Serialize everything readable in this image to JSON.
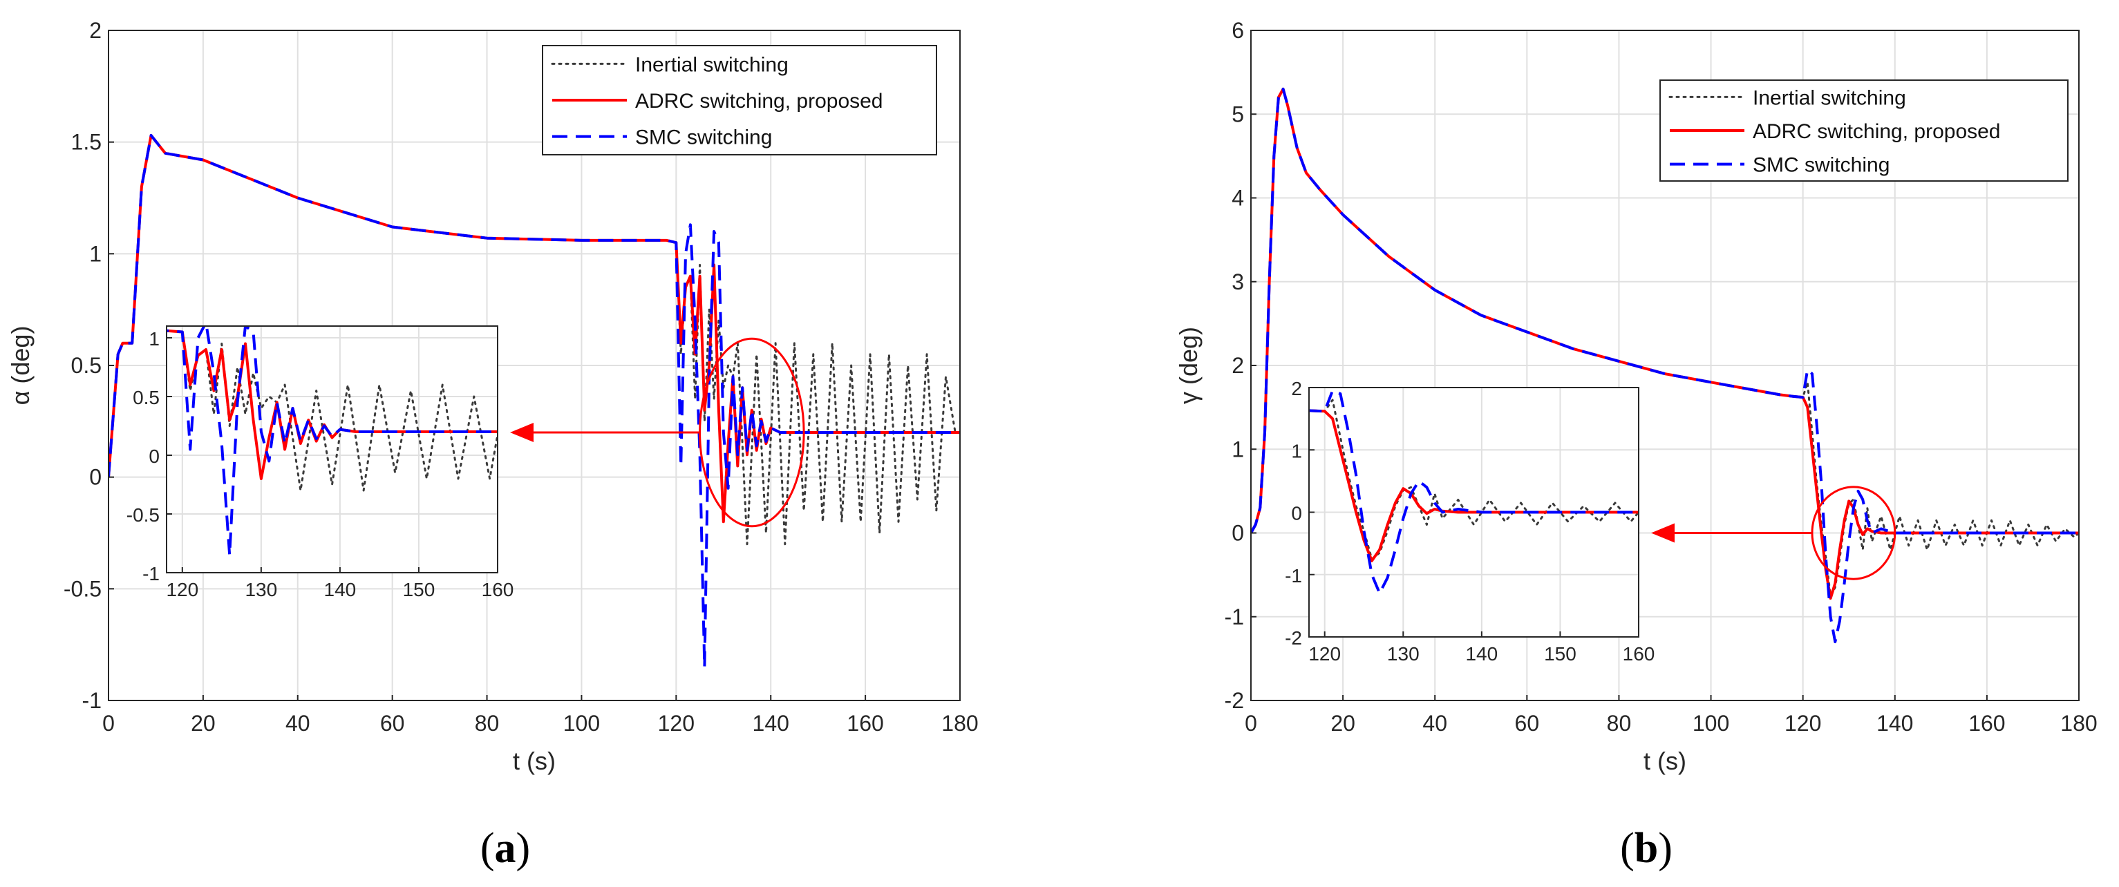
{
  "colors": {
    "inertial": "#3a3a3a",
    "adrc": "#ff0000",
    "smc": "#0000ff",
    "grid": "#e0e0e0",
    "axis": "#262626"
  },
  "chart_data": [
    {
      "id": "a",
      "type": "line",
      "caption": {
        "label": "a",
        "open": "(",
        "close": ")"
      },
      "xlabel": "t (s)",
      "ylabel": "α (deg)",
      "xlim": [
        0,
        180
      ],
      "ylim": [
        -1,
        2
      ],
      "xticks": [
        0,
        20,
        40,
        60,
        80,
        100,
        120,
        140,
        160,
        180
      ],
      "yticks": [
        -1,
        -0.5,
        0,
        0.5,
        1,
        1.5,
        2
      ],
      "ytick_labels": [
        "-1",
        "-0.5",
        "0",
        "0.5",
        "1",
        "1.5",
        "2"
      ],
      "grid": true,
      "legend": {
        "position": "top-right",
        "entries": [
          "Inertial switching",
          "ADRC switching, proposed",
          "SMC switching"
        ]
      },
      "series": [
        {
          "name": "Inertial switching",
          "style": "dotted",
          "x": [
            0,
            2,
            3,
            5,
            7,
            9,
            12,
            20,
            40,
            60,
            80,
            100,
            110,
            118,
            120,
            121,
            122,
            123,
            124,
            125,
            126,
            127,
            128,
            129,
            130,
            131,
            132,
            133,
            135,
            137,
            139,
            141,
            143,
            145,
            147,
            149,
            151,
            153,
            155,
            157,
            159,
            161,
            163,
            165,
            167,
            169,
            171,
            173,
            175,
            177,
            179,
            180
          ],
          "y": [
            0,
            0.55,
            0.6,
            0.6,
            1.3,
            1.53,
            1.45,
            1.42,
            1.25,
            1.12,
            1.07,
            1.06,
            1.06,
            1.06,
            1.05,
            0.55,
            0.85,
            0.9,
            0.35,
            0.95,
            0.25,
            0.75,
            0.35,
            0.7,
            0.4,
            0.5,
            0.45,
            0.6,
            -0.3,
            0.55,
            -0.25,
            0.6,
            -0.3,
            0.6,
            -0.15,
            0.55,
            -0.2,
            0.6,
            -0.2,
            0.5,
            -0.2,
            0.55,
            -0.25,
            0.55,
            -0.2,
            0.5,
            -0.1,
            0.55,
            -0.15,
            0.45,
            0.2,
            0.2
          ]
        },
        {
          "name": "ADRC switching, proposed",
          "style": "solid",
          "x": [
            0,
            2,
            3,
            5,
            7,
            9,
            12,
            20,
            40,
            60,
            80,
            100,
            110,
            118,
            120,
            121,
            122,
            123,
            124,
            125,
            126,
            127,
            128,
            129,
            130,
            131,
            132,
            133,
            134,
            135,
            136,
            137,
            138,
            139,
            140,
            142,
            145,
            150,
            160,
            170,
            180
          ],
          "y": [
            0,
            0.55,
            0.6,
            0.6,
            1.3,
            1.53,
            1.45,
            1.42,
            1.25,
            1.12,
            1.07,
            1.06,
            1.06,
            1.06,
            1.05,
            0.6,
            0.85,
            0.9,
            0.55,
            0.9,
            0.3,
            0.5,
            0.95,
            0.3,
            -0.2,
            0.15,
            0.45,
            0.05,
            0.4,
            0.1,
            0.3,
            0.12,
            0.26,
            0.15,
            0.22,
            0.2,
            0.2,
            0.2,
            0.2,
            0.2,
            0.2
          ]
        },
        {
          "name": "SMC switching",
          "style": "dashed",
          "x": [
            0,
            2,
            3,
            5,
            7,
            9,
            12,
            20,
            40,
            60,
            80,
            100,
            110,
            118,
            120,
            121,
            122,
            123,
            124,
            125,
            126,
            127,
            128,
            129,
            130,
            131,
            132,
            133,
            134,
            135,
            136,
            137,
            138,
            139,
            140,
            142,
            145,
            150,
            160,
            170,
            180
          ],
          "y": [
            0,
            0.55,
            0.6,
            0.6,
            1.3,
            1.53,
            1.45,
            1.42,
            1.25,
            1.12,
            1.07,
            1.06,
            1.06,
            1.06,
            1.05,
            0.05,
            1.0,
            1.13,
            0.7,
            0.1,
            -0.85,
            0.45,
            1.1,
            1.05,
            0.2,
            -0.05,
            0.45,
            0.1,
            0.4,
            0.12,
            0.3,
            0.14,
            0.25,
            0.16,
            0.22,
            0.2,
            0.2,
            0.2,
            0.2,
            0.2,
            0.2
          ]
        }
      ],
      "inset": {
        "xlim": [
          118,
          160
        ],
        "ylim": [
          -1,
          1.1
        ],
        "xticks": [
          120,
          130,
          140,
          150,
          160
        ],
        "yticks": [
          -1,
          -0.5,
          0,
          0.5,
          1
        ],
        "ytick_labels": [
          "-1",
          "-0.5",
          "0",
          "0.5",
          "1"
        ],
        "zoom_center": [
          136,
          0.2
        ],
        "zoom_radius": [
          11,
          0.42
        ]
      }
    },
    {
      "id": "b",
      "type": "line",
      "caption": {
        "label": "b",
        "open": "(",
        "close": ")"
      },
      "xlabel": "t (s)",
      "ylabel": "γ (deg)",
      "xlim": [
        0,
        180
      ],
      "ylim": [
        -2,
        6
      ],
      "xticks": [
        0,
        20,
        40,
        60,
        80,
        100,
        120,
        140,
        160,
        180
      ],
      "yticks": [
        -2,
        -1,
        0,
        1,
        2,
        3,
        4,
        5,
        6
      ],
      "ytick_labels": [
        "-2",
        "-1",
        "0",
        "1",
        "2",
        "3",
        "4",
        "5",
        "6"
      ],
      "grid": true,
      "legend": {
        "position": "top-right",
        "entries": [
          "Inertial switching",
          "ADRC switching, proposed",
          "SMC switching"
        ]
      },
      "series": [
        {
          "name": "Inertial switching",
          "style": "dotted",
          "x": [
            0,
            1,
            2,
            3,
            4,
            5,
            6,
            7,
            8,
            10,
            12,
            15,
            20,
            30,
            40,
            50,
            60,
            70,
            80,
            90,
            100,
            110,
            115,
            118,
            120,
            121,
            122,
            123,
            124,
            125,
            126,
            127,
            128,
            129,
            130,
            131,
            132,
            133,
            134,
            135,
            137,
            139,
            141,
            143,
            145,
            147,
            149,
            151,
            153,
            155,
            157,
            159,
            161,
            163,
            165,
            167,
            169,
            171,
            173,
            175,
            177,
            179,
            180
          ],
          "y": [
            0,
            0.1,
            0.3,
            1.2,
            3.0,
            4.5,
            5.2,
            5.3,
            5.1,
            4.6,
            4.3,
            4.1,
            3.8,
            3.3,
            2.9,
            2.6,
            2.4,
            2.2,
            2.05,
            1.9,
            1.8,
            1.7,
            1.65,
            1.63,
            1.62,
            1.8,
            1.2,
            0.6,
            0.1,
            -0.3,
            -0.75,
            -0.65,
            -0.3,
            0.1,
            0.35,
            0.4,
            0.1,
            -0.2,
            0.3,
            -0.1,
            0.2,
            -0.2,
            0.2,
            -0.15,
            0.15,
            -0.2,
            0.15,
            -0.15,
            0.1,
            -0.15,
            0.15,
            -0.15,
            0.15,
            -0.15,
            0.15,
            -0.15,
            0.1,
            -0.15,
            0.1,
            -0.1,
            0.05,
            -0.05,
            0
          ]
        },
        {
          "name": "ADRC switching, proposed",
          "style": "solid",
          "x": [
            0,
            1,
            2,
            3,
            4,
            5,
            6,
            7,
            8,
            10,
            12,
            15,
            20,
            30,
            40,
            50,
            60,
            70,
            80,
            90,
            100,
            110,
            115,
            118,
            120,
            121,
            122,
            123,
            124,
            125,
            126,
            127,
            128,
            129,
            130,
            131,
            132,
            133,
            134,
            135,
            137,
            140,
            145,
            150,
            160,
            170,
            180
          ],
          "y": [
            0,
            0.1,
            0.3,
            1.2,
            3.0,
            4.5,
            5.2,
            5.3,
            5.1,
            4.6,
            4.3,
            4.1,
            3.8,
            3.3,
            2.9,
            2.6,
            2.4,
            2.2,
            2.05,
            1.9,
            1.8,
            1.7,
            1.65,
            1.63,
            1.62,
            1.5,
            1.0,
            0.5,
            0.0,
            -0.45,
            -0.78,
            -0.6,
            -0.2,
            0.15,
            0.38,
            0.3,
            0.1,
            -0.02,
            0.05,
            0.02,
            0.0,
            0.0,
            0.0,
            0.0,
            0.0,
            0.0,
            0.0
          ]
        },
        {
          "name": "SMC switching",
          "style": "dashed",
          "x": [
            0,
            1,
            2,
            3,
            4,
            5,
            6,
            7,
            8,
            10,
            12,
            15,
            20,
            30,
            40,
            50,
            60,
            70,
            80,
            90,
            100,
            110,
            115,
            118,
            120,
            121,
            122,
            123,
            124,
            125,
            126,
            127,
            128,
            129,
            130,
            131,
            132,
            133,
            134,
            135,
            137,
            140,
            145,
            150,
            160,
            170,
            180
          ],
          "y": [
            0,
            0.1,
            0.3,
            1.2,
            3.0,
            4.5,
            5.2,
            5.3,
            5.1,
            4.6,
            4.3,
            4.1,
            3.8,
            3.3,
            2.9,
            2.6,
            2.4,
            2.2,
            2.05,
            1.9,
            1.8,
            1.7,
            1.65,
            1.63,
            1.62,
            1.95,
            1.9,
            1.3,
            0.6,
            -0.3,
            -1.0,
            -1.3,
            -1.05,
            -0.6,
            -0.1,
            0.3,
            0.5,
            0.4,
            0.15,
            0.0,
            0.05,
            0.0,
            0.0,
            0.0,
            0.0,
            0.0,
            0.0
          ]
        }
      ],
      "inset": {
        "xlim": [
          118,
          160
        ],
        "ylim": [
          -2,
          2
        ],
        "xticks": [
          120,
          130,
          140,
          150,
          160
        ],
        "yticks": [
          -2,
          -1,
          0,
          1,
          2
        ],
        "ytick_labels": [
          "-2",
          "-1",
          "0",
          "1",
          "2"
        ],
        "zoom_center": [
          131,
          0.0
        ],
        "zoom_radius": [
          9,
          0.55
        ]
      }
    }
  ]
}
